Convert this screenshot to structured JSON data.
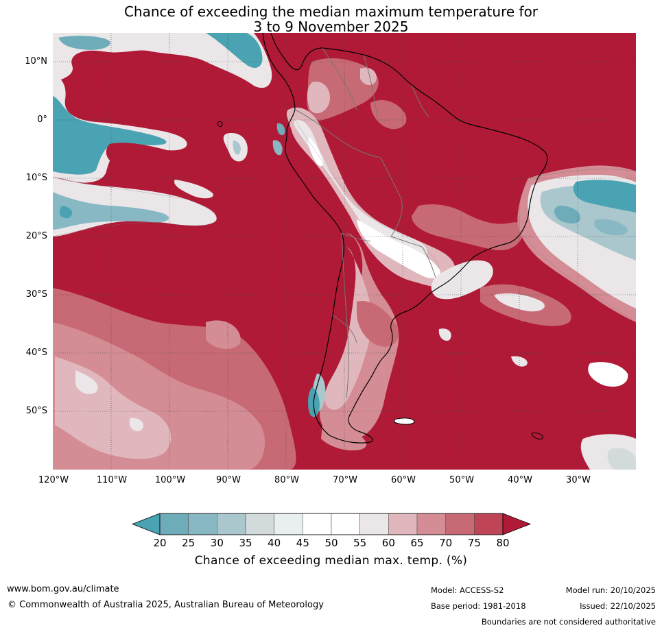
{
  "title_line1": "Chance of exceeding the median maximum temperature for",
  "title_line2": "3 to 9 November 2025",
  "map": {
    "lat_labels": [
      "10°N",
      "0°",
      "10°S",
      "20°S",
      "30°S",
      "40°S",
      "50°S"
    ],
    "lon_labels": [
      "120°W",
      "110°W",
      "100°W",
      "90°W",
      "80°W",
      "70°W",
      "60°W",
      "50°W",
      "40°W",
      "30°W"
    ],
    "extent": {
      "lon_min": -120,
      "lon_max": -20,
      "lat_min": -60,
      "lat_max": 15
    }
  },
  "colorbar": {
    "ticks": [
      "20",
      "25",
      "30",
      "35",
      "40",
      "45",
      "50",
      "55",
      "60",
      "65",
      "70",
      "75",
      "80"
    ],
    "colors": [
      "#4aa3b2",
      "#6eacb9",
      "#89b8c5",
      "#a9c7cc",
      "#d2dadc",
      "#e9eff1",
      "#ffffff",
      "#ffffff",
      "#ebe7e9",
      "#e0b7bd",
      "#d48c95",
      "#c86a75",
      "#bf4556",
      "#b01a37"
    ],
    "label": "Chance of exceeding median max. temp. (%)"
  },
  "footer": {
    "website": "www.bom.gov.au/climate",
    "copyright": "© Commonwealth of Australia 2025, Australian Bureau of Meteorology",
    "model": "Model: ACCESS-S2",
    "base_period": "Base period: 1981-2018",
    "model_run": "Model run: 20/10/2025",
    "issued": "Issued: 22/10/2025",
    "disclaimer": "Boundaries are not considered authoritative"
  }
}
